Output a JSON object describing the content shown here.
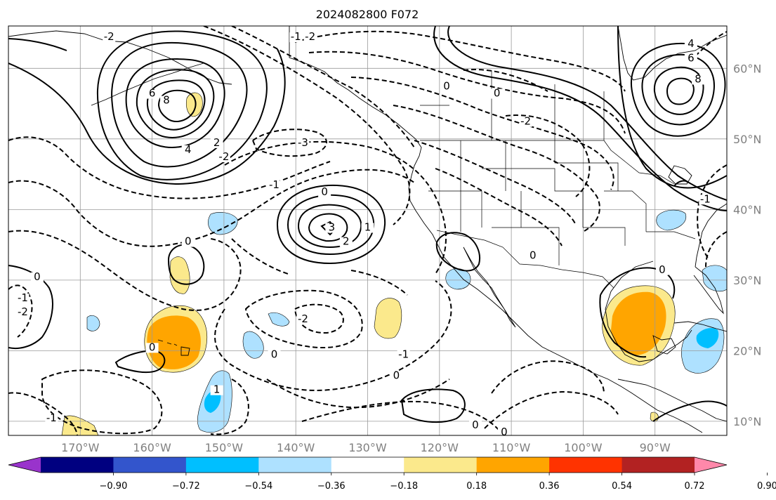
{
  "title": "2024082800 F072",
  "map": {
    "projection": "PlateCarree",
    "lon_range": [
      -180,
      -80
    ],
    "lat_range": [
      8,
      66
    ],
    "gridlines": true,
    "lon_ticks": [
      {
        "lon": -170,
        "label": "170°W"
      },
      {
        "lon": -160,
        "label": "160°W"
      },
      {
        "lon": -150,
        "label": "150°W"
      },
      {
        "lon": -140,
        "label": "140°W"
      },
      {
        "lon": -130,
        "label": "130°W"
      },
      {
        "lon": -120,
        "label": "120°W"
      },
      {
        "lon": -110,
        "label": "110°W"
      },
      {
        "lon": -100,
        "label": "100°W"
      },
      {
        "lon": -90,
        "label": "90°W"
      }
    ],
    "lat_ticks": [
      {
        "lat": 60,
        "label": "60°N"
      },
      {
        "lat": 50,
        "label": "50°N"
      },
      {
        "lat": 40,
        "label": "40°N"
      },
      {
        "lat": 30,
        "label": "30°N"
      },
      {
        "lat": 20,
        "label": "20°N"
      },
      {
        "lat": 10,
        "label": "10°N"
      }
    ],
    "tick_label_color": "#808080"
  },
  "contour_labels": [
    {
      "text": "-2",
      "lon": -166,
      "lat": 64
    },
    {
      "text": "6",
      "lon": -160,
      "lat": 56
    },
    {
      "text": "8",
      "lon": -158,
      "lat": 55
    },
    {
      "text": "4",
      "lon": -155,
      "lat": 48
    },
    {
      "text": "2",
      "lon": -151,
      "lat": 49
    },
    {
      "text": "-2",
      "lon": -150,
      "lat": 47
    },
    {
      "text": "-1",
      "lon": -143,
      "lat": 43
    },
    {
      "text": "-3",
      "lon": -139,
      "lat": 49
    },
    {
      "text": "0",
      "lon": -136,
      "lat": 42
    },
    {
      "text": "3",
      "lon": -135,
      "lat": 37
    },
    {
      "text": "2",
      "lon": -133,
      "lat": 35
    },
    {
      "text": "1",
      "lon": -130,
      "lat": 37
    },
    {
      "text": "-1",
      "lon": -140,
      "lat": 64
    },
    {
      "text": "-2",
      "lon": -138,
      "lat": 64
    },
    {
      "text": "0",
      "lon": -119,
      "lat": 57
    },
    {
      "text": "0",
      "lon": -112,
      "lat": 56
    },
    {
      "text": "-2",
      "lon": -108,
      "lat": 52
    },
    {
      "text": "4",
      "lon": -85,
      "lat": 63
    },
    {
      "text": "6",
      "lon": -85,
      "lat": 61
    },
    {
      "text": "8",
      "lon": -84,
      "lat": 58
    },
    {
      "text": "0",
      "lon": -155,
      "lat": 35
    },
    {
      "text": "0",
      "lon": -176,
      "lat": 30
    },
    {
      "text": "-1",
      "lon": -178,
      "lat": 27
    },
    {
      "text": "-2",
      "lon": -178,
      "lat": 25
    },
    {
      "text": "-2",
      "lon": -139,
      "lat": 24
    },
    {
      "text": "0",
      "lon": -160,
      "lat": 20
    },
    {
      "text": "0",
      "lon": -143,
      "lat": 19
    },
    {
      "text": "1",
      "lon": -151,
      "lat": 14
    },
    {
      "text": "-1",
      "lon": -174,
      "lat": 10
    },
    {
      "text": "-1",
      "lon": -125,
      "lat": 19
    },
    {
      "text": "0",
      "lon": -126,
      "lat": 16
    },
    {
      "text": "0",
      "lon": -115,
      "lat": 9
    },
    {
      "text": "0",
      "lon": -111,
      "lat": 8
    },
    {
      "text": "0",
      "lon": -107,
      "lat": 33
    },
    {
      "text": "0",
      "lon": -89,
      "lat": 31
    },
    {
      "text": "-1",
      "lon": -83,
      "lat": 41
    }
  ],
  "colorbar": {
    "colors": [
      "#9933cc",
      "#000080",
      "#3355cc",
      "#00bfff",
      "#aee1ff",
      "#ffffff",
      "#fbe98c",
      "#ffa500",
      "#ff3300",
      "#b22222",
      "#ff88aa"
    ],
    "ticks": [
      "−0.90",
      "−0.72",
      "−0.54",
      "−0.36",
      "−0.18",
      "0.18",
      "0.36",
      "0.54",
      "0.72",
      "0.90"
    ],
    "extend": "both"
  },
  "fill_colors": {
    "light_yellow": "#fbe98c",
    "orange": "#ffa500",
    "light_blue": "#aee1ff",
    "cyan": "#00bfff"
  }
}
